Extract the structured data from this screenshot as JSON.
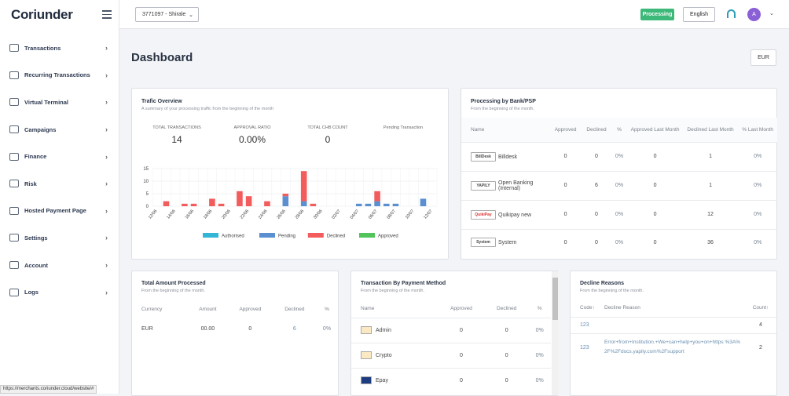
{
  "app": {
    "logo": "Coriunder"
  },
  "sidebar": {
    "items": [
      {
        "label": "Transactions",
        "icon": "transactions-icon"
      },
      {
        "label": "Recurring Transactions",
        "icon": "recurring-icon"
      },
      {
        "label": "Virtual Terminal",
        "icon": "terminal-icon"
      },
      {
        "label": "Campaigns",
        "icon": "campaigns-icon"
      },
      {
        "label": "Finance",
        "icon": "finance-icon"
      },
      {
        "label": "Risk",
        "icon": "risk-icon"
      },
      {
        "label": "Hosted Payment Page",
        "icon": "hosted-page-icon"
      },
      {
        "label": "Settings",
        "icon": "settings-icon"
      },
      {
        "label": "Account",
        "icon": "account-icon"
      },
      {
        "label": "Logs",
        "icon": "logs-icon"
      }
    ]
  },
  "topbar": {
    "merchant": "3771097 - Shirale",
    "status": "Processing",
    "language": "English",
    "avatar": "A"
  },
  "page": {
    "title": "Dashboard",
    "currency": "EUR"
  },
  "traffic": {
    "title": "Trafic Overview",
    "subtitle": "A summary of your processing traffic from the beginning of the month",
    "stats": [
      {
        "label": "TOTAL TRANSACTIONS",
        "value": "14"
      },
      {
        "label": "APPROVAL RATIO",
        "value": "0.00%"
      },
      {
        "label": "TOTAL CHB COUNT",
        "value": "0"
      },
      {
        "label": "Pending Transaction",
        "value": ""
      }
    ]
  },
  "chart_data": {
    "type": "bar",
    "title": "",
    "categories": [
      "12/06",
      "13/06",
      "14/06",
      "15/06",
      "16/06",
      "17/06",
      "18/06",
      "19/06",
      "20/06",
      "21/06",
      "22/06",
      "23/06",
      "24/06",
      "25/06",
      "26/06",
      "27/06",
      "28/06",
      "29/06",
      "30/06",
      "01/07",
      "02/07",
      "03/07",
      "04/07",
      "05/07",
      "06/07",
      "07/07",
      "08/07",
      "09/07",
      "10/07",
      "11/07",
      "12/07"
    ],
    "tick_labels": [
      "12/06",
      "14/06",
      "16/06",
      "18/06",
      "20/06",
      "22/06",
      "24/06",
      "26/06",
      "28/06",
      "30/06",
      "02/07",
      "04/07",
      "06/07",
      "08/07",
      "10/07",
      "12/07"
    ],
    "ylim": [
      0,
      15
    ],
    "yticks": [
      0,
      5,
      10,
      15
    ],
    "series": [
      {
        "name": "Authorised",
        "color": "#33b6d6",
        "values": [
          0,
          0,
          0,
          0,
          0,
          0,
          0,
          0,
          0,
          0,
          0,
          0,
          0,
          0,
          0,
          0,
          0,
          0,
          0,
          0,
          0,
          0,
          0,
          0,
          0,
          0,
          0,
          0,
          0,
          0,
          0
        ]
      },
      {
        "name": "Pending",
        "color": "#5b8fd0",
        "values": [
          0,
          0,
          0,
          0,
          0,
          0,
          0,
          0,
          0,
          0,
          0,
          0,
          0,
          0,
          4,
          0,
          2,
          0,
          0,
          0,
          0,
          0,
          1,
          1,
          2,
          1,
          1,
          0,
          0,
          3,
          0
        ]
      },
      {
        "name": "Declined",
        "color": "#f25c5c",
        "values": [
          0,
          2,
          0,
          1,
          1,
          0,
          3,
          1,
          0,
          6,
          4,
          0,
          2,
          0,
          1,
          0,
          12,
          1,
          0,
          0,
          0,
          0,
          0,
          0,
          4,
          0,
          0,
          0,
          0,
          0,
          0
        ]
      },
      {
        "name": "Approved",
        "color": "#52c45c",
        "values": [
          0,
          0,
          0,
          0,
          0,
          0,
          0,
          0,
          0,
          0,
          0,
          0,
          0,
          0,
          0,
          0,
          0,
          0,
          0,
          0,
          0,
          0,
          0,
          0,
          0,
          0,
          0,
          0,
          0,
          0,
          0
        ]
      }
    ]
  },
  "bank": {
    "title": "Processing by Bank/PSP",
    "subtitle": "From the beginning of the month.",
    "headers": [
      "Name",
      "Approved",
      "Declined",
      "%",
      "Approved Last Month",
      "Declined Last Month",
      "% Last Month"
    ],
    "rows": [
      {
        "logo": "BillDesk",
        "name": "Billdesk",
        "approved": "0",
        "declined": "0",
        "pct": "0%",
        "appLast": "0",
        "decLast": "1",
        "pctLast": "0%"
      },
      {
        "logo": "YAPILY",
        "name": "Open Banking (Internal)",
        "approved": "0",
        "declined": "6",
        "pct": "0%",
        "appLast": "0",
        "decLast": "1",
        "pctLast": "0%"
      },
      {
        "logo": "QuikiPay",
        "name": "Quikipay new",
        "approved": "0",
        "declined": "0",
        "pct": "0%",
        "appLast": "0",
        "decLast": "12",
        "pctLast": "0%"
      },
      {
        "logo": "System",
        "name": "System",
        "approved": "0",
        "declined": "0",
        "pct": "0%",
        "appLast": "0",
        "decLast": "36",
        "pctLast": "0%"
      }
    ]
  },
  "total": {
    "title": "Total Amount Processed",
    "subtitle": "From the beginning of the month.",
    "headers": [
      "Currency",
      "Amount",
      "Approved",
      "Declined",
      "%"
    ],
    "rows": [
      {
        "currency": "EUR",
        "amount": "00.00",
        "approved": "0",
        "declined": "6",
        "pct": "0%"
      }
    ]
  },
  "method": {
    "title": "Transaction By Payment Method",
    "subtitle": "From the beginning of the month.",
    "headers": [
      "Name",
      "Approved",
      "Declined",
      "%"
    ],
    "rows": [
      {
        "name": "Admin",
        "approved": "0",
        "declined": "0",
        "pct": "0%"
      },
      {
        "name": "Crypto",
        "approved": "0",
        "declined": "0",
        "pct": "0%"
      },
      {
        "name": "Epay",
        "approved": "0",
        "declined": "0",
        "pct": "0%"
      }
    ]
  },
  "decline": {
    "title": "Decline Reasons",
    "subtitle": "From the beginning of the month.",
    "headers": [
      "Code↑",
      "Decline Reason",
      "Count↑"
    ],
    "rows": [
      {
        "code": "123",
        "reason": "",
        "count": "4"
      },
      {
        "code": "123",
        "reason": "Error+from+Institution.+We+can+help+you+on+https %3A%2F%2Fdocs.yapily.com%2Fsupport",
        "count": "2"
      }
    ]
  },
  "status_url": "https://merchants.coriunder.cloud/website/#"
}
